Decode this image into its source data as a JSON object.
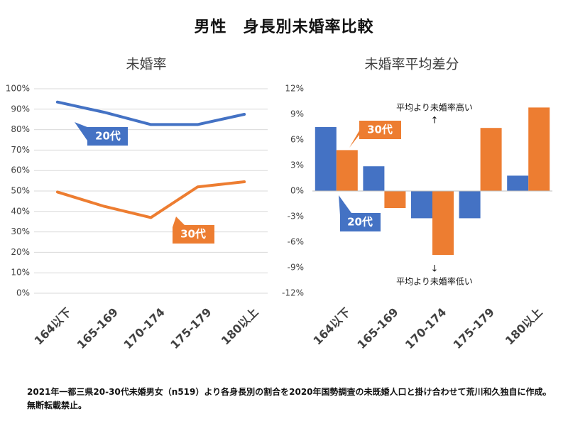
{
  "title": "男性　身長別未婚率比較",
  "footnote": "2021年一都三県20-30代未婚男女（n519）より各身長別の割合を2020年国勢調査の未既婚人口と掛け合わせて荒川和久独自に作成。無断転載禁止。",
  "colors": {
    "blue": "#4472c4",
    "orange": "#ed7d31",
    "grid": "#d9d9d9",
    "text": "#404040"
  },
  "chart_data": [
    {
      "type": "line",
      "title": "未婚率",
      "categories": [
        "164以下",
        "165-169",
        "170-174",
        "175-179",
        "180以上"
      ],
      "ylim": [
        0,
        100
      ],
      "yticks": [
        "0%",
        "10%",
        "20%",
        "30%",
        "40%",
        "50%",
        "60%",
        "70%",
        "80%",
        "90%",
        "100%"
      ],
      "grid": true,
      "series": [
        {
          "name": "20代",
          "color": "#4472c4",
          "values": [
            93.5,
            88.5,
            82.5,
            82.5,
            87.5
          ]
        },
        {
          "name": "30代",
          "color": "#ed7d31",
          "values": [
            49.5,
            42.5,
            37.0,
            52.0,
            54.5
          ]
        }
      ]
    },
    {
      "type": "bar",
      "title": "未婚率平均差分",
      "categories": [
        "164以下",
        "165-169",
        "170-174",
        "175-179",
        "180以上"
      ],
      "ylim": [
        -12,
        12
      ],
      "yticks": [
        "12%",
        "9%",
        "6%",
        "3%",
        "0%",
        "-3%",
        "-6%",
        "-9%",
        "-12%"
      ],
      "grid": false,
      "annotations": {
        "high": "平均より未婚率高い",
        "high_arrow": "↑",
        "low": "平均より未婚率低い",
        "low_arrow": "↓"
      },
      "series": [
        {
          "name": "20代",
          "color": "#4472c4",
          "values": [
            7.5,
            2.9,
            -3.2,
            -3.2,
            1.8
          ]
        },
        {
          "name": "30代",
          "color": "#ed7d31",
          "values": [
            4.8,
            -2.0,
            -7.5,
            7.4,
            9.8
          ]
        }
      ]
    }
  ]
}
